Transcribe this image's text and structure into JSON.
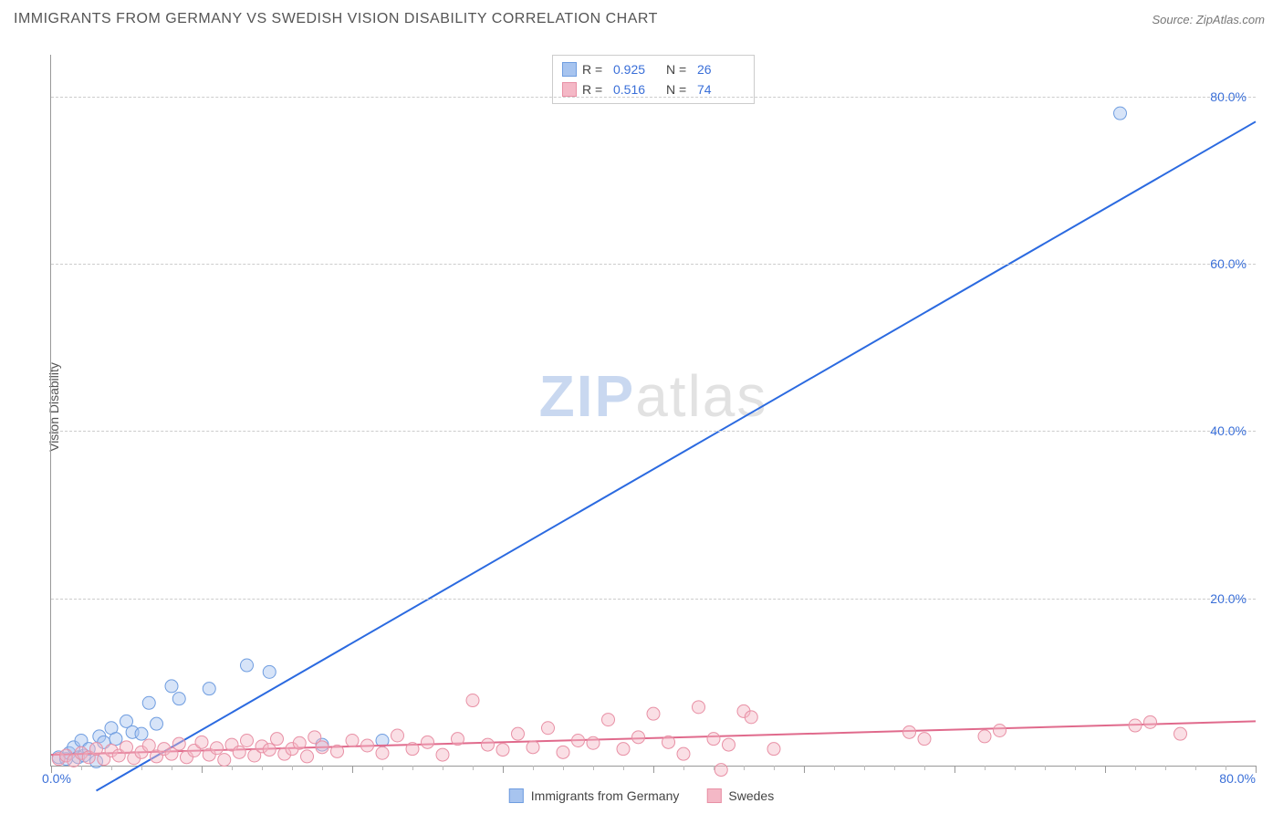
{
  "header": {
    "title": "IMMIGRANTS FROM GERMANY VS SWEDISH VISION DISABILITY CORRELATION CHART",
    "source_prefix": "Source: ",
    "source_name": "ZipAtlas.com"
  },
  "watermark": {
    "part1": "ZIP",
    "part2": "atlas"
  },
  "chart": {
    "type": "scatter",
    "ylabel": "Vision Disability",
    "background_color": "#ffffff",
    "grid_color": "#cccccc",
    "axis_color": "#999999",
    "tick_label_color": "#3a6fd8",
    "xlim": [
      0,
      80
    ],
    "ylim": [
      0,
      85
    ],
    "xtick_start": "0.0%",
    "xtick_end": "80.0%",
    "yticks": [
      {
        "v": 20,
        "label": "20.0%"
      },
      {
        "v": 40,
        "label": "40.0%"
      },
      {
        "v": 60,
        "label": "60.0%"
      },
      {
        "v": 80,
        "label": "80.0%"
      }
    ],
    "x_major_step": 10,
    "x_minor_step": 2,
    "marker_radius": 7,
    "marker_opacity": 0.45,
    "line_width": 2,
    "series": [
      {
        "name": "Immigrants from Germany",
        "color_fill": "#a7c4ef",
        "color_stroke": "#6f9de0",
        "line_color": "#2b6ae0",
        "R": "0.925",
        "N": "26",
        "trend": {
          "x1": 3,
          "y1": -3,
          "x2": 80,
          "y2": 77
        },
        "points": [
          [
            0.5,
            1.0
          ],
          [
            1,
            0.8
          ],
          [
            1.2,
            1.5
          ],
          [
            1.5,
            2.2
          ],
          [
            1.8,
            1.0
          ],
          [
            2,
            3.0
          ],
          [
            2.2,
            1.2
          ],
          [
            2.5,
            2.0
          ],
          [
            3,
            0.5
          ],
          [
            3.2,
            3.5
          ],
          [
            3.5,
            2.8
          ],
          [
            4,
            4.5
          ],
          [
            4.3,
            3.2
          ],
          [
            5,
            5.3
          ],
          [
            5.4,
            4.0
          ],
          [
            6,
            3.8
          ],
          [
            6.5,
            7.5
          ],
          [
            7,
            5.0
          ],
          [
            8,
            9.5
          ],
          [
            8.5,
            8.0
          ],
          [
            10.5,
            9.2
          ],
          [
            13,
            12.0
          ],
          [
            14.5,
            11.2
          ],
          [
            18,
            2.5
          ],
          [
            22,
            3.0
          ],
          [
            71,
            78
          ]
        ]
      },
      {
        "name": "Swedes",
        "color_fill": "#f4b8c6",
        "color_stroke": "#e890a5",
        "line_color": "#e06a8c",
        "R": "0.516",
        "N": "74",
        "trend": {
          "x1": 0,
          "y1": 1.3,
          "x2": 80,
          "y2": 5.3
        },
        "points": [
          [
            0.5,
            0.8
          ],
          [
            1,
            1.2
          ],
          [
            1.5,
            0.6
          ],
          [
            2,
            1.5
          ],
          [
            2.5,
            1.0
          ],
          [
            3,
            2.0
          ],
          [
            3.5,
            0.8
          ],
          [
            4,
            1.8
          ],
          [
            4.5,
            1.2
          ],
          [
            5,
            2.2
          ],
          [
            5.5,
            0.9
          ],
          [
            6,
            1.6
          ],
          [
            6.5,
            2.4
          ],
          [
            7,
            1.1
          ],
          [
            7.5,
            2.0
          ],
          [
            8,
            1.4
          ],
          [
            8.5,
            2.6
          ],
          [
            9,
            1.0
          ],
          [
            9.5,
            1.8
          ],
          [
            10,
            2.8
          ],
          [
            10.5,
            1.3
          ],
          [
            11,
            2.1
          ],
          [
            11.5,
            0.7
          ],
          [
            12,
            2.5
          ],
          [
            12.5,
            1.6
          ],
          [
            13,
            3.0
          ],
          [
            13.5,
            1.2
          ],
          [
            14,
            2.3
          ],
          [
            14.5,
            1.9
          ],
          [
            15,
            3.2
          ],
          [
            15.5,
            1.4
          ],
          [
            16,
            2.0
          ],
          [
            16.5,
            2.7
          ],
          [
            17,
            1.1
          ],
          [
            17.5,
            3.4
          ],
          [
            18,
            2.2
          ],
          [
            19,
            1.7
          ],
          [
            20,
            3.0
          ],
          [
            21,
            2.4
          ],
          [
            22,
            1.5
          ],
          [
            23,
            3.6
          ],
          [
            24,
            2.0
          ],
          [
            25,
            2.8
          ],
          [
            26,
            1.3
          ],
          [
            27,
            3.2
          ],
          [
            28,
            7.8
          ],
          [
            29,
            2.5
          ],
          [
            30,
            1.9
          ],
          [
            31,
            3.8
          ],
          [
            32,
            2.2
          ],
          [
            33,
            4.5
          ],
          [
            34,
            1.6
          ],
          [
            35,
            3.0
          ],
          [
            36,
            2.7
          ],
          [
            37,
            5.5
          ],
          [
            38,
            2.0
          ],
          [
            39,
            3.4
          ],
          [
            40,
            6.2
          ],
          [
            41,
            2.8
          ],
          [
            42,
            1.4
          ],
          [
            43,
            7.0
          ],
          [
            44,
            3.2
          ],
          [
            44.5,
            -0.5
          ],
          [
            45,
            2.5
          ],
          [
            46,
            6.5
          ],
          [
            46.5,
            5.8
          ],
          [
            48,
            2.0
          ],
          [
            57,
            4.0
          ],
          [
            58,
            3.2
          ],
          [
            62,
            3.5
          ],
          [
            63,
            4.2
          ],
          [
            72,
            4.8
          ],
          [
            73,
            5.2
          ],
          [
            75,
            3.8
          ]
        ]
      }
    ]
  },
  "legend_top": {
    "r_label": "R =",
    "n_label": "N ="
  },
  "legend_bottom": {}
}
